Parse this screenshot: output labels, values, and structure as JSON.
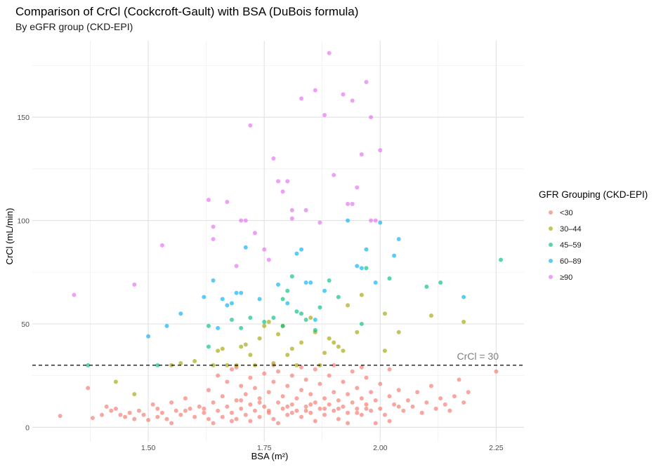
{
  "title": "Comparison of CrCl (Cockcroft-Gault) with BSA (DuBois formula)",
  "subtitle": "By eGFR group (CKD-EPI)",
  "chart_data": {
    "type": "scatter",
    "xlabel": "BSA (m²)",
    "ylabel": "CrCl (mL/min)",
    "xlim": [
      1.25,
      2.31
    ],
    "ylim": [
      -7,
      187
    ],
    "x_ticks": [
      "1.50",
      "1.75",
      "2.00",
      "2.25"
    ],
    "y_ticks": [
      "0",
      "50",
      "100",
      "150"
    ],
    "grid": true,
    "reference_line": {
      "y": 30,
      "style": "dashed",
      "label": "CrCl = 30"
    },
    "legend": {
      "title": "GFR Grouping (CKD-EPI)",
      "position": "right"
    },
    "series": [
      {
        "name": "<30",
        "color": "#F8766D",
        "points": [
          [
            1.31,
            5.5
          ],
          [
            1.37,
            19
          ],
          [
            1.38,
            4.5
          ],
          [
            1.4,
            6
          ],
          [
            1.41,
            10
          ],
          [
            1.42,
            8
          ],
          [
            1.43,
            9
          ],
          [
            1.44,
            6
          ],
          [
            1.45,
            5
          ],
          [
            1.46,
            7
          ],
          [
            1.47,
            4
          ],
          [
            1.48,
            8
          ],
          [
            1.49,
            6
          ],
          [
            1.5,
            3.5
          ],
          [
            1.51,
            11
          ],
          [
            1.52,
            9
          ],
          [
            1.52,
            5
          ],
          [
            1.53,
            7
          ],
          [
            1.54,
            4
          ],
          [
            1.55,
            12
          ],
          [
            1.56,
            8
          ],
          [
            1.57,
            6
          ],
          [
            1.58,
            14
          ],
          [
            1.59,
            9
          ],
          [
            1.6,
            5
          ],
          [
            1.61,
            10
          ],
          [
            1.62,
            7
          ],
          [
            1.63,
            18
          ],
          [
            1.63,
            4
          ],
          [
            1.64,
            12
          ],
          [
            1.65,
            25
          ],
          [
            1.65,
            8
          ],
          [
            1.66,
            15
          ],
          [
            1.66,
            5
          ],
          [
            1.67,
            22
          ],
          [
            1.67,
            10
          ],
          [
            1.68,
            7
          ],
          [
            1.68,
            28
          ],
          [
            1.69,
            13
          ],
          [
            1.69,
            4
          ],
          [
            1.7,
            20
          ],
          [
            1.7,
            9
          ],
          [
            1.71,
            16
          ],
          [
            1.71,
            6
          ],
          [
            1.72,
            24
          ],
          [
            1.72,
            11
          ],
          [
            1.73,
            8
          ],
          [
            1.73,
            19
          ],
          [
            1.74,
            5
          ],
          [
            1.74,
            14
          ],
          [
            1.75,
            26
          ],
          [
            1.75,
            10
          ],
          [
            1.76,
            7
          ],
          [
            1.76,
            17
          ],
          [
            1.77,
            22
          ],
          [
            1.77,
            4
          ],
          [
            1.78,
            12
          ],
          [
            1.78,
            27
          ],
          [
            1.79,
            9
          ],
          [
            1.79,
            15
          ],
          [
            1.8,
            6
          ],
          [
            1.8,
            20
          ],
          [
            1.81,
            11
          ],
          [
            1.81,
            25
          ],
          [
            1.82,
            8
          ],
          [
            1.82,
            14
          ],
          [
            1.83,
            18
          ],
          [
            1.83,
            5
          ],
          [
            1.84,
            23
          ],
          [
            1.84,
            10
          ],
          [
            1.85,
            7
          ],
          [
            1.85,
            16
          ],
          [
            1.86,
            28
          ],
          [
            1.86,
            12
          ],
          [
            1.87,
            9
          ],
          [
            1.87,
            21
          ],
          [
            1.88,
            6
          ],
          [
            1.88,
            14
          ],
          [
            1.89,
            25
          ],
          [
            1.89,
            11
          ],
          [
            1.9,
            8
          ],
          [
            1.9,
            17
          ],
          [
            1.91,
            13
          ],
          [
            1.91,
            4
          ],
          [
            1.92,
            22
          ],
          [
            1.92,
            10
          ],
          [
            1.93,
            7
          ],
          [
            1.93,
            16
          ],
          [
            1.94,
            27
          ],
          [
            1.94,
            12
          ],
          [
            1.95,
            9
          ],
          [
            1.95,
            19
          ],
          [
            1.96,
            6
          ],
          [
            1.96,
            14
          ],
          [
            1.97,
            24
          ],
          [
            1.97,
            11
          ],
          [
            1.98,
            8
          ],
          [
            1.98,
            17
          ],
          [
            1.99,
            13
          ],
          [
            2.0,
            21
          ],
          [
            2.0,
            9
          ],
          [
            2.01,
            6
          ],
          [
            2.02,
            15
          ],
          [
            2.03,
            11
          ],
          [
            2.04,
            18
          ],
          [
            2.05,
            8
          ],
          [
            2.06,
            13
          ],
          [
            2.07,
            10
          ],
          [
            2.08,
            17
          ],
          [
            2.09,
            7
          ],
          [
            2.1,
            12
          ],
          [
            2.11,
            20
          ],
          [
            2.12,
            9
          ],
          [
            2.13,
            14
          ],
          [
            2.14,
            11
          ],
          [
            2.15,
            8
          ],
          [
            2.16,
            15
          ],
          [
            2.17,
            23
          ],
          [
            2.18,
            12
          ],
          [
            2.19,
            17
          ],
          [
            2.25,
            27
          ],
          [
            1.64,
            2
          ],
          [
            1.72,
            3
          ],
          [
            1.78,
            2
          ],
          [
            1.86,
            3
          ],
          [
            1.93,
            2
          ],
          [
            2.02,
            3
          ],
          [
            1.55,
            2
          ],
          [
            1.68,
            3
          ],
          [
            1.99,
            2
          ],
          [
            1.62,
            9
          ],
          [
            1.74,
            12
          ],
          [
            1.81,
            7
          ],
          [
            1.88,
            9
          ],
          [
            1.95,
            7
          ],
          [
            2.04,
            10
          ],
          [
            1.58,
            8
          ],
          [
            1.7,
            13
          ],
          [
            1.84,
            8
          ],
          [
            1.97,
            9
          ],
          [
            1.77,
            30
          ],
          [
            1.83,
            29
          ],
          [
            1.9,
            30
          ],
          [
            1.69,
            29
          ],
          [
            1.96,
            29
          ],
          [
            2.02,
            28
          ],
          [
            1.76,
            8
          ],
          [
            1.8,
            10
          ],
          [
            1.85,
            11
          ],
          [
            1.91,
            9
          ]
        ]
      },
      {
        "name": "30–44",
        "color": "#A3A500",
        "points": [
          [
            1.43,
            22
          ],
          [
            1.47,
            16
          ],
          [
            1.55,
            30
          ],
          [
            1.57,
            31
          ],
          [
            1.6,
            32
          ],
          [
            1.65,
            37
          ],
          [
            1.66,
            38
          ],
          [
            1.67,
            30
          ],
          [
            1.69,
            30
          ],
          [
            1.7,
            39
          ],
          [
            1.71,
            40
          ],
          [
            1.72,
            35
          ],
          [
            1.74,
            43
          ],
          [
            1.75,
            49
          ],
          [
            1.76,
            51
          ],
          [
            1.77,
            31
          ],
          [
            1.78,
            45
          ],
          [
            1.79,
            49
          ],
          [
            1.8,
            35
          ],
          [
            1.81,
            38
          ],
          [
            1.82,
            30
          ],
          [
            1.83,
            41
          ],
          [
            1.85,
            53
          ],
          [
            1.86,
            46
          ],
          [
            1.88,
            36
          ],
          [
            1.89,
            43
          ],
          [
            1.9,
            41
          ],
          [
            1.91,
            39
          ],
          [
            1.92,
            37
          ],
          [
            1.93,
            59
          ],
          [
            1.95,
            46
          ],
          [
            1.96,
            64
          ],
          [
            2.01,
            37
          ],
          [
            2.01,
            55
          ],
          [
            2.04,
            46
          ],
          [
            2.11,
            54
          ],
          [
            2.18,
            51
          ],
          [
            1.73,
            30
          ],
          [
            1.87,
            30
          ],
          [
            1.64,
            30
          ]
        ]
      },
      {
        "name": "45–59",
        "color": "#00BF7D",
        "points": [
          [
            1.37,
            30
          ],
          [
            1.52,
            30
          ],
          [
            1.63,
            39
          ],
          [
            1.63,
            49
          ],
          [
            1.68,
            52
          ],
          [
            1.7,
            48
          ],
          [
            1.72,
            53
          ],
          [
            1.75,
            51
          ],
          [
            1.77,
            53
          ],
          [
            1.79,
            49
          ],
          [
            1.79,
            62
          ],
          [
            1.8,
            66
          ],
          [
            1.81,
            73
          ],
          [
            1.82,
            56
          ],
          [
            1.83,
            55
          ],
          [
            1.84,
            52
          ],
          [
            1.86,
            47
          ],
          [
            1.87,
            58
          ],
          [
            1.89,
            71
          ],
          [
            1.91,
            63
          ],
          [
            1.96,
            50
          ],
          [
            1.97,
            77
          ],
          [
            2.02,
            72
          ],
          [
            2.1,
            68
          ],
          [
            2.13,
            70
          ],
          [
            2.26,
            81
          ]
        ]
      },
      {
        "name": "60–89",
        "color": "#00B0F6",
        "points": [
          [
            1.5,
            44
          ],
          [
            1.54,
            49
          ],
          [
            1.57,
            55
          ],
          [
            1.62,
            63
          ],
          [
            1.64,
            71
          ],
          [
            1.66,
            62
          ],
          [
            1.67,
            59
          ],
          [
            1.68,
            60
          ],
          [
            1.69,
            65
          ],
          [
            1.7,
            65
          ],
          [
            1.71,
            87
          ],
          [
            1.74,
            62
          ],
          [
            1.78,
            69
          ],
          [
            1.8,
            60
          ],
          [
            1.82,
            84
          ],
          [
            1.83,
            86
          ],
          [
            1.84,
            70
          ],
          [
            1.85,
            70
          ],
          [
            1.86,
            52
          ],
          [
            1.88,
            66
          ],
          [
            1.93,
            100
          ],
          [
            1.95,
            78
          ],
          [
            1.96,
            77
          ],
          [
            1.97,
            86
          ],
          [
            1.99,
            70
          ],
          [
            2.0,
            99
          ],
          [
            2.03,
            83
          ],
          [
            2.04,
            91
          ],
          [
            2.18,
            63
          ],
          [
            1.65,
            48
          ]
        ]
      },
      {
        "name": "≥90",
        "color": "#E76BF3",
        "points": [
          [
            1.34,
            64
          ],
          [
            1.47,
            69
          ],
          [
            1.53,
            88
          ],
          [
            1.63,
            110
          ],
          [
            1.64,
            97
          ],
          [
            1.64,
            91
          ],
          [
            1.67,
            109
          ],
          [
            1.7,
            100
          ],
          [
            1.71,
            100
          ],
          [
            1.72,
            146
          ],
          [
            1.73,
            94
          ],
          [
            1.76,
            81
          ],
          [
            1.77,
            130
          ],
          [
            1.78,
            119
          ],
          [
            1.79,
            114
          ],
          [
            1.8,
            119
          ],
          [
            1.81,
            105
          ],
          [
            1.81,
            101
          ],
          [
            1.83,
            159
          ],
          [
            1.84,
            105
          ],
          [
            1.86,
            163
          ],
          [
            1.87,
            99
          ],
          [
            1.88,
            151
          ],
          [
            1.89,
            181
          ],
          [
            1.92,
            161
          ],
          [
            1.93,
            108
          ],
          [
            1.94,
            158
          ],
          [
            1.95,
            116
          ],
          [
            1.96,
            132
          ],
          [
            1.97,
            167
          ],
          [
            1.98,
            150
          ],
          [
            1.99,
            100
          ],
          [
            2.0,
            134
          ],
          [
            1.9,
            122
          ],
          [
            1.69,
            78
          ],
          [
            1.94,
            108
          ],
          [
            1.98,
            100
          ],
          [
            1.75,
            86
          ]
        ]
      }
    ]
  }
}
